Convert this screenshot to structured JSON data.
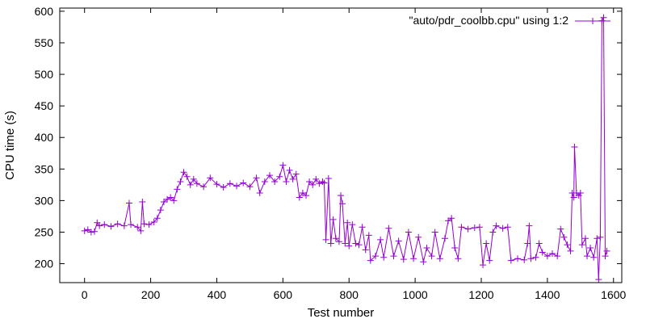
{
  "chart_data": {
    "type": "line",
    "title": "",
    "xlabel": "Test number",
    "ylabel": "CPU time (s)",
    "xlim": [
      -75,
      1625
    ],
    "ylim": [
      170,
      605
    ],
    "xticks": [
      0,
      200,
      400,
      600,
      800,
      1000,
      1200,
      1400,
      1600
    ],
    "yticks": [
      200,
      250,
      300,
      350,
      400,
      450,
      500,
      550,
      600
    ],
    "grid": false,
    "legend": {
      "position": "top-right"
    },
    "series_style": {
      "color": "#9400d3",
      "marker": "plus"
    },
    "series": [
      {
        "name": "\"auto/pdr_coolbb.cpu\" using 1:2",
        "points": [
          [
            0,
            252
          ],
          [
            10,
            254
          ],
          [
            20,
            250
          ],
          [
            30,
            251
          ],
          [
            38,
            265
          ],
          [
            45,
            260
          ],
          [
            60,
            262
          ],
          [
            80,
            259
          ],
          [
            100,
            263
          ],
          [
            120,
            260
          ],
          [
            135,
            296
          ],
          [
            140,
            262
          ],
          [
            160,
            258
          ],
          [
            170,
            252
          ],
          [
            175,
            298
          ],
          [
            180,
            263
          ],
          [
            195,
            262
          ],
          [
            210,
            266
          ],
          [
            220,
            272
          ],
          [
            230,
            285
          ],
          [
            240,
            298
          ],
          [
            250,
            302
          ],
          [
            260,
            305
          ],
          [
            270,
            300
          ],
          [
            280,
            318
          ],
          [
            290,
            330
          ],
          [
            300,
            345
          ],
          [
            310,
            338
          ],
          [
            320,
            325
          ],
          [
            330,
            334
          ],
          [
            340,
            327
          ],
          [
            360,
            322
          ],
          [
            380,
            336
          ],
          [
            400,
            326
          ],
          [
            420,
            321
          ],
          [
            440,
            327
          ],
          [
            460,
            323
          ],
          [
            480,
            328
          ],
          [
            500,
            322
          ],
          [
            520,
            336
          ],
          [
            530,
            312
          ],
          [
            545,
            330
          ],
          [
            560,
            340
          ],
          [
            575,
            330
          ],
          [
            590,
            338
          ],
          [
            600,
            356
          ],
          [
            610,
            330
          ],
          [
            620,
            348
          ],
          [
            630,
            334
          ],
          [
            640,
            342
          ],
          [
            650,
            305
          ],
          [
            660,
            312
          ],
          [
            670,
            308
          ],
          [
            680,
            330
          ],
          [
            690,
            325
          ],
          [
            700,
            334
          ],
          [
            710,
            327
          ],
          [
            720,
            330
          ],
          [
            725,
            328
          ],
          [
            730,
            238
          ],
          [
            738,
            335
          ],
          [
            745,
            232
          ],
          [
            752,
            270
          ],
          [
            760,
            240
          ],
          [
            770,
            235
          ],
          [
            775,
            308
          ],
          [
            780,
            295
          ],
          [
            788,
            232
          ],
          [
            795,
            265
          ],
          [
            800,
            228
          ],
          [
            810,
            262
          ],
          [
            820,
            232
          ],
          [
            830,
            230
          ],
          [
            840,
            258
          ],
          [
            850,
            222
          ],
          [
            860,
            245
          ],
          [
            865,
            205
          ],
          [
            880,
            212
          ],
          [
            895,
            238
          ],
          [
            905,
            210
          ],
          [
            920,
            256
          ],
          [
            935,
            212
          ],
          [
            950,
            236
          ],
          [
            965,
            207
          ],
          [
            980,
            250
          ],
          [
            995,
            208
          ],
          [
            1010,
            242
          ],
          [
            1025,
            203
          ],
          [
            1035,
            225
          ],
          [
            1050,
            212
          ],
          [
            1060,
            250
          ],
          [
            1075,
            208
          ],
          [
            1090,
            240
          ],
          [
            1100,
            268
          ],
          [
            1110,
            272
          ],
          [
            1120,
            225
          ],
          [
            1130,
            208
          ],
          [
            1140,
            258
          ],
          [
            1160,
            255
          ],
          [
            1180,
            257
          ],
          [
            1195,
            258
          ],
          [
            1205,
            198
          ],
          [
            1215,
            232
          ],
          [
            1225,
            205
          ],
          [
            1235,
            250
          ],
          [
            1245,
            260
          ],
          [
            1265,
            256
          ],
          [
            1280,
            258
          ],
          [
            1290,
            205
          ],
          [
            1310,
            208
          ],
          [
            1330,
            206
          ],
          [
            1340,
            232
          ],
          [
            1345,
            260
          ],
          [
            1350,
            208
          ],
          [
            1365,
            210
          ],
          [
            1375,
            232
          ],
          [
            1385,
            218
          ],
          [
            1400,
            212
          ],
          [
            1415,
            216
          ],
          [
            1430,
            212
          ],
          [
            1440,
            255
          ],
          [
            1450,
            242
          ],
          [
            1460,
            230
          ],
          [
            1470,
            220
          ],
          [
            1475,
            312
          ],
          [
            1480,
            305
          ],
          [
            1482,
            385
          ],
          [
            1488,
            312
          ],
          [
            1495,
            308
          ],
          [
            1500,
            312
          ],
          [
            1505,
            230
          ],
          [
            1515,
            240
          ],
          [
            1520,
            212
          ],
          [
            1530,
            225
          ],
          [
            1540,
            210
          ],
          [
            1550,
            240
          ],
          [
            1555,
            175
          ],
          [
            1560,
            242
          ],
          [
            1565,
            585
          ],
          [
            1570,
            590
          ],
          [
            1575,
            212
          ],
          [
            1580,
            220
          ]
        ]
      }
    ]
  }
}
